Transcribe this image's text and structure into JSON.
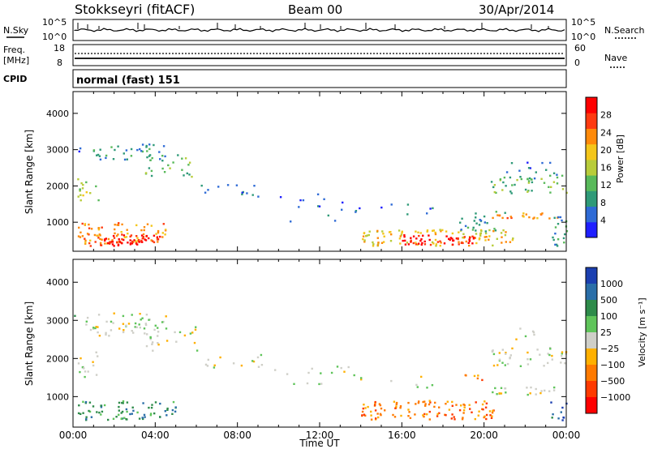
{
  "header": {
    "title": "Stokkseyri (fitACF)",
    "beam": "Beam 00",
    "date": "30/Apr/2014"
  },
  "noise_panel": {
    "left_label": "N.Sky",
    "right_label": "N.Search",
    "left_ticks": [
      "10^5",
      "10^0"
    ],
    "right_ticks": [
      "10^5",
      "10^0"
    ]
  },
  "freq_panel": {
    "left_label_1": "Freq.",
    "left_label_2": "[MHz]",
    "right_label": "Nave",
    "left_ticks": [
      "18",
      "8"
    ],
    "right_ticks": [
      "60",
      "0"
    ]
  },
  "cpid": {
    "label": "CPID",
    "mode": "normal (fast) 151"
  },
  "chart_data": [
    {
      "type": "heatmap",
      "title": "Power",
      "ylabel": "Slant Range [km]",
      "xlabel": "",
      "ylim": [
        200,
        4600
      ],
      "y_ticks": [
        "1000",
        "2000",
        "3000",
        "4000"
      ],
      "colorbar": {
        "label": "Power [dB]",
        "ticks": [
          "4",
          "8",
          "12",
          "16",
          "20",
          "24",
          "28"
        ],
        "colors": [
          "#1f1fff",
          "#2f6bd6",
          "#2f9a78",
          "#58b95a",
          "#b8cc3a",
          "#f4c61a",
          "#ff8a0a",
          "#ff3a10",
          "#ff0000"
        ]
      }
    },
    {
      "type": "heatmap",
      "title": "Velocity",
      "ylabel": "Slant Range [km]",
      "xlabel": "Time UT",
      "ylim": [
        200,
        4600
      ],
      "y_ticks": [
        "1000",
        "2000",
        "3000",
        "4000"
      ],
      "x_ticks": [
        "00:00",
        "04:00",
        "08:00",
        "12:00",
        "16:00",
        "20:00",
        "00:00"
      ],
      "colorbar": {
        "label": "Velocity [m s⁻¹]",
        "ticks": [
          "1000",
          "500",
          "100",
          "25",
          "−25",
          "−100",
          "−500",
          "−1000"
        ],
        "colors": [
          "#1b3fb0",
          "#2a6ea8",
          "#2e8b4a",
          "#5fc45a",
          "#cfcfc8",
          "#ffb000",
          "#ff7a00",
          "#ff3a00",
          "#ff0000"
        ]
      }
    }
  ]
}
